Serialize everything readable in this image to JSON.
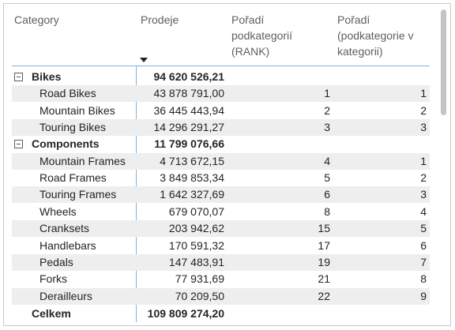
{
  "header": {
    "columns": [
      {
        "lines": [
          "Category"
        ]
      },
      {
        "lines": [
          "Prodeje"
        ]
      },
      {
        "lines": [
          "Pořadí",
          "podkategorií",
          "(RANK)"
        ]
      },
      {
        "lines": [
          "Pořadí",
          "(podkategorie v",
          "kategorii)"
        ]
      }
    ]
  },
  "groups": [
    {
      "name": "Bikes",
      "sales": "94 620 526,21",
      "rows": [
        {
          "name": "Road Bikes",
          "sales": "43 878 791,00",
          "rank": 1,
          "rank_in_category": 1
        },
        {
          "name": "Mountain Bikes",
          "sales": "36 445 443,94",
          "rank": 2,
          "rank_in_category": 2
        },
        {
          "name": "Touring Bikes",
          "sales": "14 296 291,27",
          "rank": 3,
          "rank_in_category": 3
        }
      ]
    },
    {
      "name": "Components",
      "sales": "11 799 076,66",
      "rows": [
        {
          "name": "Mountain Frames",
          "sales": "4 713 672,15",
          "rank": 4,
          "rank_in_category": 1
        },
        {
          "name": "Road Frames",
          "sales": "3 849 853,34",
          "rank": 5,
          "rank_in_category": 2
        },
        {
          "name": "Touring Frames",
          "sales": "1 642 327,69",
          "rank": 6,
          "rank_in_category": 3
        },
        {
          "name": "Wheels",
          "sales": "679 070,07",
          "rank": 8,
          "rank_in_category": 4
        },
        {
          "name": "Cranksets",
          "sales": "203 942,62",
          "rank": 15,
          "rank_in_category": 5
        },
        {
          "name": "Handlebars",
          "sales": "170 591,32",
          "rank": 17,
          "rank_in_category": 6
        },
        {
          "name": "Pedals",
          "sales": "147 483,91",
          "rank": 19,
          "rank_in_category": 7
        },
        {
          "name": "Forks",
          "sales": "77 931,69",
          "rank": 21,
          "rank_in_category": 8
        },
        {
          "name": "Derailleurs",
          "sales": "70 209,50",
          "rank": 22,
          "rank_in_category": 9
        }
      ]
    }
  ],
  "total": {
    "label": "Celkem",
    "sales": "109 809 274,20"
  }
}
